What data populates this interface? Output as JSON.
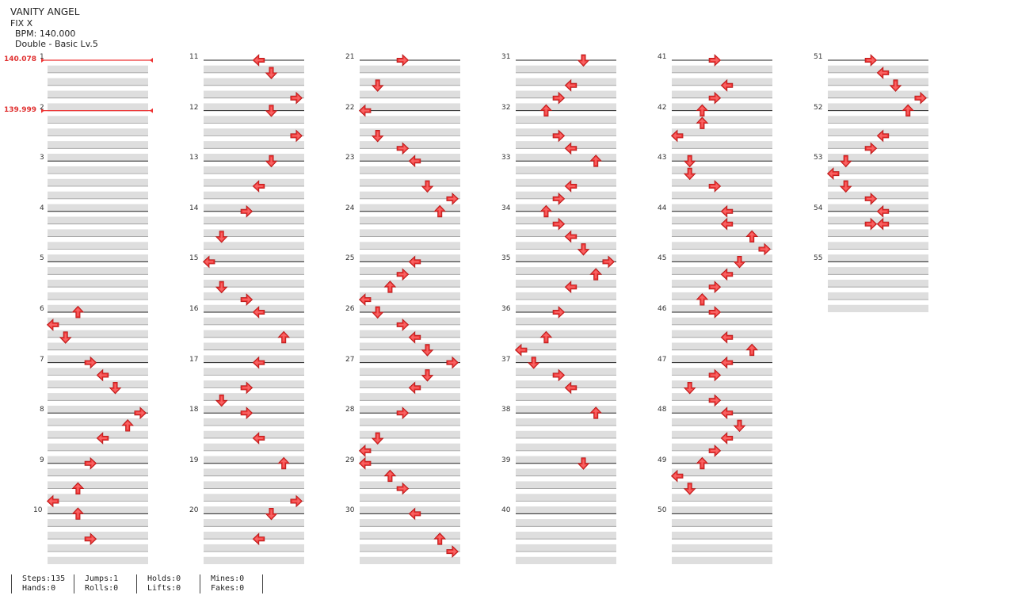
{
  "song": {
    "title": "VANITY ANGEL",
    "artist": "FIX X",
    "bpm_label": "BPM: 140.000",
    "difficulty": "Double - Basic Lv.5"
  },
  "bpm_changes": [
    {
      "measure": 1,
      "label": "140.078"
    },
    {
      "measure": 2,
      "label": "139.999"
    }
  ],
  "measure_count": 55,
  "note_color": "#ee3333",
  "note_lanes": [
    "left",
    "down",
    "up",
    "right",
    "left",
    "down",
    "up",
    "right"
  ],
  "notes": [
    [
      6,
      0,
      2
    ],
    [
      6,
      0.25,
      0
    ],
    [
      6,
      0.5,
      1
    ],
    [
      7,
      0,
      3
    ],
    [
      7,
      0.25,
      4
    ],
    [
      7,
      0.5,
      5
    ],
    [
      8,
      0,
      7
    ],
    [
      8,
      0.25,
      6
    ],
    [
      8,
      0.5,
      4
    ],
    [
      9,
      0,
      3
    ],
    [
      9,
      0.5,
      2
    ],
    [
      9,
      0.75,
      0
    ],
    [
      10,
      0,
      2
    ],
    [
      10,
      0.5,
      3
    ],
    [
      11,
      0,
      4
    ],
    [
      11,
      0.25,
      5
    ],
    [
      11,
      0.75,
      7
    ],
    [
      12,
      0,
      5
    ],
    [
      12,
      0.5,
      7
    ],
    [
      13,
      0,
      5
    ],
    [
      13,
      0.5,
      4
    ],
    [
      14,
      0,
      3
    ],
    [
      14,
      0.5,
      1
    ],
    [
      15,
      0,
      0
    ],
    [
      15,
      0.5,
      1
    ],
    [
      15,
      0.75,
      3
    ],
    [
      16,
      0,
      4
    ],
    [
      16,
      0.5,
      6
    ],
    [
      17,
      0,
      4
    ],
    [
      17,
      0.5,
      3
    ],
    [
      17,
      0.75,
      1
    ],
    [
      18,
      0,
      3
    ],
    [
      18,
      0.5,
      4
    ],
    [
      19,
      0,
      6
    ],
    [
      19,
      0.75,
      7
    ],
    [
      20,
      0,
      5
    ],
    [
      20,
      0.5,
      4
    ],
    [
      21,
      0,
      3
    ],
    [
      21,
      0.5,
      1
    ],
    [
      22,
      0,
      0
    ],
    [
      22,
      0.5,
      1
    ],
    [
      22,
      0.75,
      3
    ],
    [
      23,
      0,
      4
    ],
    [
      23,
      0.5,
      5
    ],
    [
      23,
      0.75,
      7
    ],
    [
      24,
      0,
      6
    ],
    [
      25,
      0,
      4
    ],
    [
      25,
      0.25,
      3
    ],
    [
      25,
      0.5,
      2
    ],
    [
      25,
      0.75,
      0
    ],
    [
      26,
      0,
      1
    ],
    [
      26,
      0.25,
      3
    ],
    [
      26,
      0.5,
      4
    ],
    [
      26,
      0.75,
      5
    ],
    [
      27,
      0,
      7
    ],
    [
      27,
      0.25,
      5
    ],
    [
      27,
      0.5,
      4
    ],
    [
      28,
      0,
      3
    ],
    [
      28,
      0.5,
      1
    ],
    [
      28,
      0.75,
      0
    ],
    [
      29,
      0,
      0
    ],
    [
      29,
      0.25,
      2
    ],
    [
      29,
      0.5,
      3
    ],
    [
      30,
      0,
      4
    ],
    [
      30,
      0.5,
      6
    ],
    [
      30,
      0.75,
      7
    ],
    [
      31,
      0,
      5
    ],
    [
      31,
      0.5,
      4
    ],
    [
      31,
      0.75,
      3
    ],
    [
      32,
      0,
      2
    ],
    [
      32,
      0.5,
      3
    ],
    [
      32,
      0.75,
      4
    ],
    [
      33,
      0,
      6
    ],
    [
      33,
      0.5,
      4
    ],
    [
      33,
      0.75,
      3
    ],
    [
      34,
      0,
      2
    ],
    [
      34,
      0.25,
      3
    ],
    [
      34,
      0.5,
      4
    ],
    [
      34,
      0.75,
      5
    ],
    [
      35,
      0,
      7
    ],
    [
      35,
      0.25,
      6
    ],
    [
      35,
      0.5,
      4
    ],
    [
      36,
      0,
      3
    ],
    [
      36,
      0.5,
      2
    ],
    [
      36,
      0.75,
      0
    ],
    [
      37,
      0,
      1
    ],
    [
      37,
      0.25,
      3
    ],
    [
      37,
      0.5,
      4
    ],
    [
      38,
      0,
      6
    ],
    [
      39,
      0,
      5
    ],
    [
      41,
      0,
      3
    ],
    [
      41,
      0.5,
      4
    ],
    [
      41,
      0.75,
      3
    ],
    [
      42,
      0,
      2
    ],
    [
      42,
      0.25,
      2
    ],
    [
      42,
      0.5,
      0
    ],
    [
      43,
      0,
      1
    ],
    [
      43,
      0.25,
      1
    ],
    [
      43,
      0.5,
      3
    ],
    [
      44,
      0,
      4
    ],
    [
      44,
      0.25,
      4
    ],
    [
      44,
      0.5,
      6
    ],
    [
      44,
      0.75,
      7
    ],
    [
      45,
      0,
      5
    ],
    [
      45,
      0.25,
      4
    ],
    [
      45,
      0.5,
      3
    ],
    [
      45,
      0.75,
      2
    ],
    [
      46,
      0,
      3
    ],
    [
      46,
      0.5,
      4
    ],
    [
      46,
      0.75,
      6
    ],
    [
      47,
      0,
      4
    ],
    [
      47,
      0.25,
      3
    ],
    [
      47,
      0.5,
      1
    ],
    [
      47,
      0.75,
      3
    ],
    [
      48,
      0,
      4
    ],
    [
      48,
      0.25,
      5
    ],
    [
      48,
      0.5,
      4
    ],
    [
      48,
      0.75,
      3
    ],
    [
      49,
      0,
      2
    ],
    [
      49,
      0.25,
      0
    ],
    [
      49,
      0.5,
      1
    ],
    [
      51,
      0,
      3
    ],
    [
      51,
      0.25,
      4
    ],
    [
      51,
      0.5,
      5
    ],
    [
      51,
      0.75,
      7
    ],
    [
      52,
      0,
      6
    ],
    [
      52,
      0.5,
      4
    ],
    [
      52,
      0.75,
      3
    ],
    [
      53,
      0,
      1
    ],
    [
      53,
      0.25,
      0
    ],
    [
      53,
      0.5,
      1
    ],
    [
      53,
      0.75,
      3
    ],
    [
      54,
      0,
      4
    ],
    [
      54,
      0.25,
      3
    ],
    [
      54,
      0.25,
      4
    ]
  ],
  "stats": {
    "steps": "Steps:135",
    "hands": "Hands:0",
    "jumps": "Jumps:1",
    "rolls": "Rolls:0",
    "holds": "Holds:0",
    "lifts": "Lifts:0",
    "mines": "Mines:0",
    "fakes": "Fakes:0"
  }
}
